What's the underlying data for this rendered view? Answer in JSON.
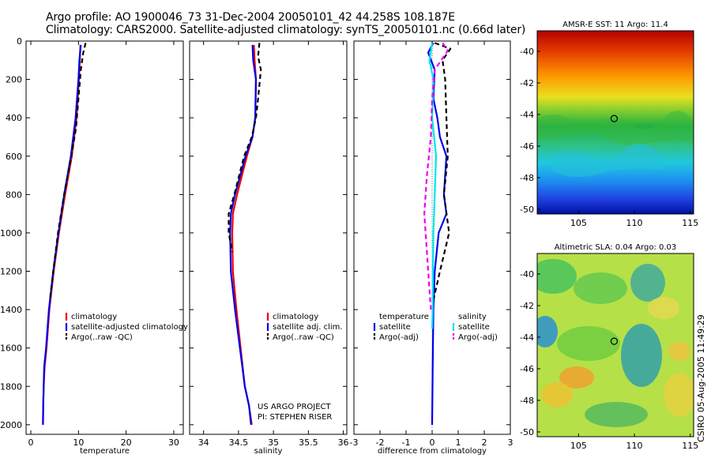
{
  "header": {
    "title_line1": "Argo profile: AO 1900046_73 31-Dec-2004 20050101_42 44.258S 108.187E",
    "title_line2": "Climatology: CARS2000. Satellite-adjusted climatology: synTS_20050101.nc (0.66d later)"
  },
  "side_label": "CSIRO 05-Aug-2005 11:49:29",
  "colors": {
    "climatology": "#ee0000",
    "satellite": "#0000ee",
    "argo": "#000000",
    "salinity_satellite": "#00e5ee",
    "salinity_argo": "#ee00ee"
  },
  "chart_data": [
    {
      "type": "line",
      "id": "temperature",
      "xlabel": "temperature",
      "xlim": [
        -1,
        32
      ],
      "ylim": [
        0,
        2050
      ],
      "y_reversed": true,
      "xticks": [
        0,
        10,
        20,
        30
      ],
      "yticks": [
        0,
        200,
        400,
        600,
        800,
        1000,
        1200,
        1400,
        1600,
        1800,
        2000
      ],
      "legend": [
        "climatology",
        "satellite-adjusted climatology",
        "Argo(..raw -QC)"
      ],
      "series": [
        {
          "name": "climatology",
          "color": "#ee0000",
          "dash": "solid",
          "x": [
            10.4,
            10.3,
            10.1,
            9.6,
            8.6,
            7.2,
            5.9,
            4.8,
            3.9,
            3.3,
            2.9,
            2.7,
            2.6,
            2.55
          ],
          "y": [
            20,
            100,
            200,
            400,
            600,
            800,
            1000,
            1200,
            1400,
            1600,
            1700,
            1800,
            1900,
            2000
          ]
        },
        {
          "name": "satellite-adjusted climatology",
          "color": "#0000ee",
          "dash": "solid",
          "x": [
            10.5,
            10.2,
            10.0,
            9.4,
            8.4,
            7.0,
            5.8,
            4.7,
            3.8,
            3.2,
            2.8,
            2.7,
            2.6,
            2.55
          ],
          "y": [
            20,
            100,
            200,
            400,
            600,
            800,
            1000,
            1200,
            1400,
            1600,
            1700,
            1800,
            1900,
            2000
          ]
        },
        {
          "name": "Argo(..raw -QC)",
          "color": "#000000",
          "dash": "dashed",
          "x": [
            11.5,
            11.0,
            10.5,
            10.0,
            9.5,
            8.5,
            7.0,
            5.7,
            4.7,
            4.0
          ],
          "y": [
            10,
            60,
            150,
            300,
            450,
            600,
            800,
            1000,
            1200,
            1350
          ]
        }
      ]
    },
    {
      "type": "line",
      "id": "salinity",
      "xlabel": "salinity",
      "xlim": [
        33.8,
        36.05
      ],
      "ylim": [
        0,
        2050
      ],
      "y_reversed": true,
      "xticks": [
        34,
        34.5,
        35,
        35.5,
        36
      ],
      "xticklabels": [
        "34",
        "34.5",
        "35",
        "35.5",
        "36"
      ],
      "legend": [
        "climatology",
        "satellite adj. clim.",
        "Argo(..raw -QC)"
      ],
      "annotation": [
        "US ARGO PROJECT",
        "PI: STEPHEN RISER"
      ],
      "series": [
        {
          "name": "climatology",
          "color": "#ee0000",
          "dash": "solid",
          "x": [
            34.72,
            34.73,
            34.75,
            34.74,
            34.7,
            34.62,
            34.48,
            34.42,
            34.41,
            34.42,
            34.47,
            34.53,
            34.59,
            34.65,
            34.69
          ],
          "y": [
            20,
            100,
            200,
            400,
            500,
            600,
            800,
            900,
            1000,
            1200,
            1400,
            1600,
            1800,
            1900,
            2000
          ]
        },
        {
          "name": "satellite adj. clim.",
          "color": "#0000ee",
          "dash": "solid",
          "x": [
            34.7,
            34.71,
            34.75,
            34.74,
            34.7,
            34.6,
            34.45,
            34.39,
            34.38,
            34.39,
            34.45,
            34.52,
            34.59,
            34.65,
            34.68
          ],
          "y": [
            20,
            100,
            200,
            400,
            500,
            600,
            800,
            900,
            1000,
            1200,
            1400,
            1600,
            1800,
            1900,
            2000
          ]
        },
        {
          "name": "Argo(..raw -QC)",
          "color": "#000000",
          "dash": "dashed",
          "x": [
            34.8,
            34.78,
            34.82,
            34.78,
            34.75,
            34.69,
            34.58,
            34.44,
            34.36,
            34.36,
            34.41
          ],
          "y": [
            10,
            80,
            150,
            300,
            400,
            500,
            600,
            800,
            900,
            1000,
            1100
          ]
        }
      ]
    },
    {
      "type": "line",
      "id": "difference",
      "xlabel": "difference from climatology",
      "xlim": [
        -3,
        3
      ],
      "ylim": [
        0,
        2050
      ],
      "y_reversed": true,
      "xticks": [
        -3,
        -2,
        -1,
        0,
        1,
        2,
        3
      ],
      "legend": [
        "temperature",
        "satellite",
        "Argo(-adj)",
        "salinity",
        "satellite",
        "Argo(-adj)"
      ],
      "series": [
        {
          "name": "temperature satellite",
          "color": "#0000ee",
          "dash": "solid",
          "x": [
            0.05,
            -0.15,
            0.1,
            0.05,
            0.2,
            0.3,
            0.55,
            0.45,
            0.55,
            0.25,
            0.1,
            0.05,
            0.02,
            0.0
          ],
          "y": [
            10,
            60,
            150,
            300,
            400,
            500,
            600,
            800,
            900,
            1000,
            1200,
            1400,
            1700,
            2000
          ]
        },
        {
          "name": "temperature Argo(-adj)",
          "color": "#000000",
          "dash": "dashed",
          "x": [
            0.1,
            0.7,
            0.4,
            0.5,
            0.55,
            0.6,
            0.45,
            0.65,
            0.3,
            0.05
          ],
          "y": [
            10,
            40,
            100,
            200,
            400,
            600,
            800,
            1000,
            1200,
            1350
          ]
        },
        {
          "name": "salinity satellite",
          "color": "#00e5ee",
          "dash": "solid",
          "x": [
            0.0,
            -0.1,
            0.05,
            0.0,
            0.15,
            0.1,
            0.05,
            0.03,
            0.02,
            0.0
          ],
          "y": [
            10,
            100,
            200,
            400,
            600,
            800,
            1000,
            1200,
            1400,
            1500
          ]
        },
        {
          "name": "salinity Argo(-adj)",
          "color": "#ee00ee",
          "dash": "dashed",
          "x": [
            0.4,
            0.6,
            0.1,
            0.0,
            -0.05,
            -0.2,
            -0.3,
            -0.2,
            -0.1,
            -0.05
          ],
          "y": [
            10,
            50,
            150,
            300,
            500,
            700,
            900,
            1100,
            1300,
            1400
          ]
        }
      ]
    },
    {
      "type": "heatmap",
      "id": "amsre-sst",
      "title": "AMSR-E SST: 11 Argo: 11.4",
      "xlim": [
        101.3,
        115.3
      ],
      "ylim": [
        -50.3,
        -38.7
      ],
      "xticks": [
        105,
        110,
        115
      ],
      "yticks": [
        -40,
        -42,
        -44,
        -46,
        -48,
        -50
      ],
      "marker": {
        "x": 108.187,
        "y": -44.258
      },
      "colormap": "jet"
    },
    {
      "type": "heatmap",
      "id": "altimetric-sla",
      "title": "Altimetric SLA: 0.04 Argo: 0.03",
      "xlim": [
        101.3,
        115.3
      ],
      "ylim": [
        -50.3,
        -38.7
      ],
      "xticks": [
        105,
        110,
        115
      ],
      "yticks": [
        -40,
        -42,
        -44,
        -46,
        -48,
        -50
      ],
      "marker": {
        "x": 108.187,
        "y": -44.258
      },
      "colormap": "jet"
    }
  ]
}
